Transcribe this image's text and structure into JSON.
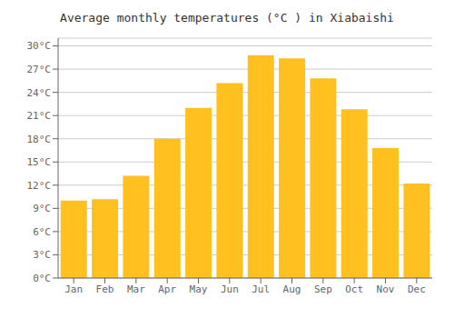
{
  "chart_data": {
    "type": "bar",
    "title": "Average monthly temperatures (°C ) in Xiabaishi",
    "categories": [
      "Jan",
      "Feb",
      "Mar",
      "Apr",
      "May",
      "Jun",
      "Jul",
      "Aug",
      "Sep",
      "Oct",
      "Nov",
      "Dec"
    ],
    "values": [
      10.0,
      10.2,
      13.2,
      18.0,
      22.0,
      25.2,
      28.8,
      28.4,
      25.8,
      21.8,
      16.8,
      12.2
    ],
    "color": "#FFC020",
    "ylim": [
      0,
      31
    ],
    "yticks": [
      {
        "value": 0,
        "label": "0°C"
      },
      {
        "value": 3,
        "label": "3°C"
      },
      {
        "value": 6,
        "label": "6°C"
      },
      {
        "value": 9,
        "label": "9°C"
      },
      {
        "value": 12,
        "label": "12°C"
      },
      {
        "value": 15,
        "label": "15°C"
      },
      {
        "value": 18,
        "label": "18°C"
      },
      {
        "value": 21,
        "label": "21°C"
      },
      {
        "value": 24,
        "label": "24°C"
      },
      {
        "value": 27,
        "label": "27°C"
      },
      {
        "value": 30,
        "label": "30°C"
      }
    ],
    "grid": true
  }
}
